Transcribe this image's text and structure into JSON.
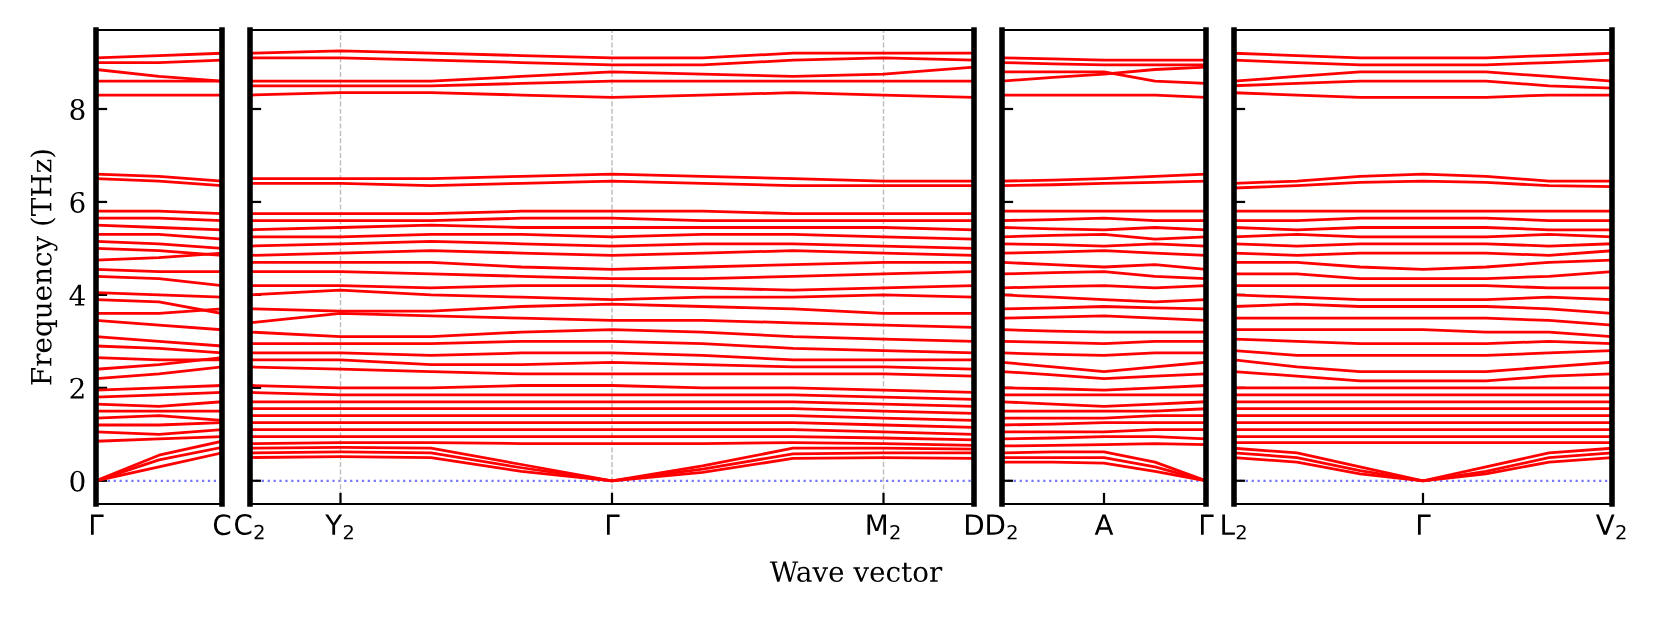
{
  "chart_data": [
    {
      "type": "line",
      "color": "#ff0000",
      "ylabel": "Frequency (THz)",
      "categories": [
        "Γ",
        null,
        "C"
      ],
      "ylim": [
        -0.5,
        9.7
      ],
      "yticks": [
        0,
        2,
        4,
        6,
        8
      ],
      "line_style": "solid",
      "ref_lines": [
        {
          "axis": "y",
          "value": 0,
          "color": "#7777ff",
          "line_style": "dotted"
        }
      ],
      "series": [
        {
          "values": [
            9.1,
            9.15,
            9.2
          ]
        },
        {
          "values": [
            9.0,
            9.0,
            9.05
          ]
        },
        {
          "values": [
            8.85,
            8.7,
            8.6
          ]
        },
        {
          "values": [
            8.6,
            8.6,
            8.6
          ]
        },
        {
          "values": [
            8.3,
            8.3,
            8.3
          ]
        },
        {
          "values": [
            6.6,
            6.55,
            6.45
          ]
        },
        {
          "values": [
            6.5,
            6.45,
            6.35
          ]
        },
        {
          "values": [
            5.8,
            5.8,
            5.75
          ]
        },
        {
          "values": [
            5.65,
            5.65,
            5.6
          ]
        },
        {
          "values": [
            5.5,
            5.45,
            5.4
          ]
        },
        {
          "values": [
            5.3,
            5.3,
            5.2
          ]
        },
        {
          "values": [
            5.15,
            5.1,
            5.0
          ]
        },
        {
          "values": [
            5.0,
            4.95,
            4.85
          ]
        },
        {
          "values": [
            4.75,
            4.8,
            4.9
          ]
        },
        {
          "values": [
            4.55,
            4.5,
            4.5
          ]
        },
        {
          "values": [
            4.4,
            4.35,
            4.2
          ]
        },
        {
          "values": [
            4.05,
            4.0,
            3.95
          ]
        },
        {
          "values": [
            3.9,
            3.85,
            3.6
          ]
        },
        {
          "values": [
            3.6,
            3.6,
            3.7
          ]
        },
        {
          "values": [
            3.45,
            3.35,
            3.25
          ]
        },
        {
          "values": [
            3.1,
            3.0,
            2.9
          ]
        },
        {
          "values": [
            2.9,
            2.85,
            2.75
          ]
        },
        {
          "values": [
            2.65,
            2.6,
            2.6
          ]
        },
        {
          "values": [
            2.4,
            2.5,
            2.65
          ]
        },
        {
          "values": [
            2.2,
            2.3,
            2.45
          ]
        },
        {
          "values": [
            1.95,
            2.0,
            2.05
          ]
        },
        {
          "values": [
            1.8,
            1.85,
            1.9
          ]
        },
        {
          "values": [
            1.65,
            1.6,
            1.7
          ]
        },
        {
          "values": [
            1.5,
            1.5,
            1.5
          ]
        },
        {
          "values": [
            1.35,
            1.4,
            1.3
          ]
        },
        {
          "values": [
            1.2,
            1.2,
            1.25
          ]
        },
        {
          "values": [
            1.05,
            1.0,
            1.1
          ]
        },
        {
          "values": [
            0.85,
            0.9,
            0.95
          ]
        },
        {
          "values": [
            0,
            0.3,
            0.6
          ]
        },
        {
          "values": [
            0,
            0.45,
            0.72
          ]
        },
        {
          "values": [
            0,
            0.55,
            0.85
          ]
        }
      ]
    },
    {
      "type": "line",
      "color": "#ff0000",
      "xlabel": "Wave vector",
      "categories": [
        "C$_{2}$",
        "Y$_{2}$",
        null,
        null,
        "Γ",
        null,
        null,
        "M$_{2}$",
        "D"
      ],
      "ylim": [
        -0.5,
        9.7
      ],
      "yticks": [
        0,
        2,
        4,
        6,
        8
      ],
      "tick_labels": "x",
      "grid": "x",
      "line_style": "solid",
      "ref_lines": [
        {
          "axis": "y",
          "value": 0,
          "color": "#7777ff",
          "line_style": "dotted"
        }
      ],
      "series": [
        {
          "values": [
            9.2,
            9.25,
            9.2,
            9.15,
            9.1,
            9.1,
            9.2,
            9.2,
            9.2
          ]
        },
        {
          "values": [
            9.1,
            9.1,
            9.05,
            9.0,
            8.95,
            8.95,
            9.05,
            9.1,
            9.05
          ]
        },
        {
          "values": [
            8.6,
            8.6,
            8.6,
            8.7,
            8.8,
            8.75,
            8.7,
            8.75,
            8.9
          ]
        },
        {
          "values": [
            8.5,
            8.5,
            8.5,
            8.55,
            8.6,
            8.6,
            8.6,
            8.6,
            8.6
          ]
        },
        {
          "values": [
            8.3,
            8.35,
            8.35,
            8.3,
            8.25,
            8.3,
            8.35,
            8.3,
            8.25
          ]
        },
        {
          "values": [
            6.5,
            6.5,
            6.5,
            6.55,
            6.6,
            6.55,
            6.5,
            6.45,
            6.45
          ]
        },
        {
          "values": [
            6.4,
            6.4,
            6.35,
            6.4,
            6.45,
            6.4,
            6.35,
            6.35,
            6.35
          ]
        },
        {
          "values": [
            5.75,
            5.75,
            5.75,
            5.8,
            5.8,
            5.8,
            5.75,
            5.75,
            5.75
          ]
        },
        {
          "values": [
            5.6,
            5.6,
            5.6,
            5.65,
            5.65,
            5.6,
            5.6,
            5.6,
            5.6
          ]
        },
        {
          "values": [
            5.4,
            5.45,
            5.5,
            5.45,
            5.45,
            5.45,
            5.45,
            5.45,
            5.4
          ]
        },
        {
          "values": [
            5.25,
            5.25,
            5.3,
            5.3,
            5.25,
            5.3,
            5.3,
            5.25,
            5.2
          ]
        },
        {
          "values": [
            5.05,
            5.1,
            5.15,
            5.1,
            5.05,
            5.1,
            5.1,
            5.05,
            5.0
          ]
        },
        {
          "values": [
            4.85,
            4.9,
            4.95,
            4.9,
            4.85,
            4.9,
            4.95,
            4.9,
            4.85
          ]
        },
        {
          "values": [
            4.7,
            4.7,
            4.7,
            4.6,
            4.55,
            4.6,
            4.65,
            4.7,
            4.7
          ]
        },
        {
          "values": [
            4.5,
            4.5,
            4.45,
            4.4,
            4.35,
            4.35,
            4.4,
            4.45,
            4.5
          ]
        },
        {
          "values": [
            4.2,
            4.2,
            4.15,
            4.2,
            4.2,
            4.15,
            4.1,
            4.15,
            4.2
          ]
        },
        {
          "values": [
            4.0,
            4.1,
            4.0,
            3.95,
            3.9,
            3.95,
            3.95,
            4.0,
            3.95
          ]
        },
        {
          "values": [
            3.7,
            3.65,
            3.65,
            3.75,
            3.8,
            3.75,
            3.7,
            3.6,
            3.6
          ]
        },
        {
          "values": [
            3.4,
            3.6,
            3.55,
            3.5,
            3.45,
            3.45,
            3.4,
            3.35,
            3.3
          ]
        },
        {
          "values": [
            3.2,
            3.1,
            3.1,
            3.2,
            3.25,
            3.2,
            3.1,
            3.05,
            3.0
          ]
        },
        {
          "values": [
            2.95,
            2.95,
            2.95,
            3.0,
            3.0,
            2.95,
            2.85,
            2.8,
            2.75
          ]
        },
        {
          "values": [
            2.75,
            2.75,
            2.7,
            2.75,
            2.75,
            2.7,
            2.6,
            2.6,
            2.6
          ]
        },
        {
          "values": [
            2.6,
            2.6,
            2.5,
            2.5,
            2.55,
            2.5,
            2.45,
            2.45,
            2.4
          ]
        },
        {
          "values": [
            2.45,
            2.4,
            2.35,
            2.3,
            2.3,
            2.3,
            2.3,
            2.3,
            2.25
          ]
        },
        {
          "values": [
            2.05,
            2.0,
            2.0,
            2.05,
            2.05,
            2.0,
            2.0,
            1.95,
            1.9
          ]
        },
        {
          "values": [
            1.9,
            1.85,
            1.85,
            1.85,
            1.85,
            1.85,
            1.85,
            1.8,
            1.75
          ]
        },
        {
          "values": [
            1.7,
            1.7,
            1.7,
            1.7,
            1.7,
            1.7,
            1.7,
            1.65,
            1.6
          ]
        },
        {
          "values": [
            1.55,
            1.55,
            1.55,
            1.55,
            1.55,
            1.55,
            1.55,
            1.5,
            1.45
          ]
        },
        {
          "values": [
            1.4,
            1.4,
            1.4,
            1.4,
            1.4,
            1.4,
            1.4,
            1.35,
            1.3
          ]
        },
        {
          "values": [
            1.25,
            1.25,
            1.25,
            1.25,
            1.25,
            1.25,
            1.25,
            1.2,
            1.15
          ]
        },
        {
          "values": [
            1.1,
            1.1,
            1.1,
            1.1,
            1.1,
            1.1,
            1.1,
            1.05,
            1.0
          ]
        },
        {
          "values": [
            0.95,
            0.95,
            0.95,
            0.95,
            0.95,
            0.95,
            0.95,
            0.92,
            0.88
          ]
        },
        {
          "values": [
            0.8,
            0.82,
            0.82,
            0.8,
            0.8,
            0.8,
            0.82,
            0.8,
            0.76
          ]
        },
        {
          "values": [
            0.5,
            0.52,
            0.5,
            0.2,
            0,
            0.18,
            0.48,
            0.5,
            0.48
          ]
        },
        {
          "values": [
            0.6,
            0.62,
            0.6,
            0.28,
            0,
            0.25,
            0.58,
            0.6,
            0.6
          ]
        },
        {
          "values": [
            0.7,
            0.72,
            0.7,
            0.35,
            0,
            0.32,
            0.7,
            0.7,
            0.68
          ]
        }
      ]
    },
    {
      "type": "line",
      "color": "#ff0000",
      "categories": [
        "D$_{2}$",
        null,
        "A",
        null,
        "Γ"
      ],
      "ylim": [
        -0.5,
        9.7
      ],
      "yticks": [
        0,
        2,
        4,
        6,
        8
      ],
      "tick_labels": "x",
      "line_style": "solid",
      "ref_lines": [
        {
          "axis": "y",
          "value": 0,
          "color": "#7777ff",
          "line_style": "dotted"
        }
      ],
      "series": [
        {
          "values": [
            9.1,
            9.08,
            9.05,
            9.05,
            9.05
          ]
        },
        {
          "values": [
            9.0,
            8.97,
            8.95,
            8.95,
            8.95
          ]
        },
        {
          "values": [
            8.8,
            8.8,
            8.8,
            8.6,
            8.55
          ]
        },
        {
          "values": [
            8.6,
            8.68,
            8.75,
            8.85,
            8.9
          ]
        },
        {
          "values": [
            8.3,
            8.3,
            8.3,
            8.3,
            8.25
          ]
        },
        {
          "values": [
            6.45,
            6.47,
            6.5,
            6.55,
            6.6
          ]
        },
        {
          "values": [
            6.35,
            6.37,
            6.4,
            6.42,
            6.45
          ]
        },
        {
          "values": [
            5.8,
            5.8,
            5.8,
            5.8,
            5.8
          ]
        },
        {
          "values": [
            5.6,
            5.62,
            5.65,
            5.6,
            5.6
          ]
        },
        {
          "values": [
            5.45,
            5.42,
            5.4,
            5.45,
            5.4
          ]
        },
        {
          "values": [
            5.25,
            5.28,
            5.3,
            5.2,
            5.25
          ]
        },
        {
          "values": [
            5.1,
            5.08,
            5.05,
            5.1,
            5.05
          ]
        },
        {
          "values": [
            4.9,
            4.92,
            4.95,
            4.9,
            4.85
          ]
        },
        {
          "values": [
            4.7,
            4.65,
            4.6,
            4.65,
            4.55
          ]
        },
        {
          "values": [
            4.45,
            4.48,
            4.5,
            4.4,
            4.35
          ]
        },
        {
          "values": [
            4.15,
            4.18,
            4.2,
            4.15,
            4.2
          ]
        },
        {
          "values": [
            4.0,
            3.95,
            3.9,
            3.85,
            3.9
          ]
        },
        {
          "values": [
            3.7,
            3.72,
            3.75,
            3.72,
            3.7
          ]
        },
        {
          "values": [
            3.5,
            3.52,
            3.55,
            3.5,
            3.45
          ]
        },
        {
          "values": [
            3.25,
            3.22,
            3.2,
            3.2,
            3.2
          ]
        },
        {
          "values": [
            3.0,
            2.98,
            2.95,
            3.0,
            3.0
          ]
        },
        {
          "values": [
            2.75,
            2.72,
            2.7,
            2.75,
            2.75
          ]
        },
        {
          "values": [
            2.55,
            2.45,
            2.35,
            2.45,
            2.55
          ]
        },
        {
          "values": [
            2.35,
            2.28,
            2.2,
            2.25,
            2.3
          ]
        },
        {
          "values": [
            2.0,
            1.98,
            1.95,
            2.0,
            2.05
          ]
        },
        {
          "values": [
            1.85,
            1.85,
            1.85,
            1.85,
            1.85
          ]
        },
        {
          "values": [
            1.7,
            1.65,
            1.6,
            1.65,
            1.7
          ]
        },
        {
          "values": [
            1.5,
            1.5,
            1.5,
            1.5,
            1.55
          ]
        },
        {
          "values": [
            1.35,
            1.35,
            1.35,
            1.4,
            1.4
          ]
        },
        {
          "values": [
            1.2,
            1.22,
            1.25,
            1.25,
            1.25
          ]
        },
        {
          "values": [
            1.05,
            1.05,
            1.05,
            1.1,
            1.1
          ]
        },
        {
          "values": [
            0.9,
            0.92,
            0.95,
            0.95,
            0.9
          ]
        },
        {
          "values": [
            0.75,
            0.76,
            0.78,
            0.8,
            0.78
          ]
        },
        {
          "values": [
            0.4,
            0.4,
            0.38,
            0.2,
            0
          ]
        },
        {
          "values": [
            0.5,
            0.5,
            0.5,
            0.3,
            0
          ]
        },
        {
          "values": [
            0.6,
            0.62,
            0.62,
            0.4,
            0
          ]
        }
      ]
    },
    {
      "type": "line",
      "color": "#ff0000",
      "categories": [
        "L$_{2}$",
        null,
        null,
        "Γ",
        null,
        null,
        "V$_{2}$"
      ],
      "ylim": [
        -0.5,
        9.7
      ],
      "yticks": [
        0,
        2,
        4,
        6,
        8
      ],
      "tick_labels": "x",
      "line_style": "solid",
      "ref_lines": [
        {
          "axis": "y",
          "value": 0,
          "color": "#7777ff",
          "line_style": "dotted"
        }
      ],
      "series": [
        {
          "values": [
            9.2,
            9.15,
            9.1,
            9.1,
            9.1,
            9.15,
            9.2
          ]
        },
        {
          "values": [
            9.05,
            9.0,
            8.95,
            8.95,
            8.95,
            9.0,
            9.05
          ]
        },
        {
          "values": [
            8.6,
            8.7,
            8.8,
            8.8,
            8.8,
            8.7,
            8.6
          ]
        },
        {
          "values": [
            8.5,
            8.55,
            8.6,
            8.6,
            8.6,
            8.5,
            8.45
          ]
        },
        {
          "values": [
            8.35,
            8.3,
            8.25,
            8.25,
            8.25,
            8.3,
            8.3
          ]
        },
        {
          "values": [
            6.4,
            6.45,
            6.55,
            6.6,
            6.55,
            6.45,
            6.45
          ]
        },
        {
          "values": [
            6.3,
            6.35,
            6.42,
            6.45,
            6.42,
            6.35,
            6.33
          ]
        },
        {
          "values": [
            5.8,
            5.8,
            5.8,
            5.8,
            5.8,
            5.8,
            5.8
          ]
        },
        {
          "values": [
            5.6,
            5.6,
            5.65,
            5.65,
            5.65,
            5.6,
            5.6
          ]
        },
        {
          "values": [
            5.45,
            5.4,
            5.45,
            5.45,
            5.45,
            5.4,
            5.4
          ]
        },
        {
          "values": [
            5.25,
            5.3,
            5.25,
            5.25,
            5.25,
            5.3,
            5.25
          ]
        },
        {
          "values": [
            5.1,
            5.05,
            5.1,
            5.1,
            5.1,
            5.05,
            5.1
          ]
        },
        {
          "values": [
            4.9,
            4.85,
            4.9,
            4.9,
            4.9,
            4.85,
            4.95
          ]
        },
        {
          "values": [
            4.7,
            4.7,
            4.6,
            4.55,
            4.6,
            4.7,
            4.75
          ]
        },
        {
          "values": [
            4.45,
            4.45,
            4.35,
            4.35,
            4.35,
            4.4,
            4.5
          ]
        },
        {
          "values": [
            4.2,
            4.2,
            4.2,
            4.2,
            4.2,
            4.15,
            4.15
          ]
        },
        {
          "values": [
            4.0,
            3.95,
            3.9,
            3.9,
            3.9,
            3.95,
            3.9
          ]
        },
        {
          "values": [
            3.75,
            3.8,
            3.75,
            3.75,
            3.75,
            3.7,
            3.6
          ]
        },
        {
          "values": [
            3.5,
            3.5,
            3.5,
            3.5,
            3.5,
            3.45,
            3.35
          ]
        },
        {
          "values": [
            3.25,
            3.25,
            3.25,
            3.25,
            3.2,
            3.2,
            3.1
          ]
        },
        {
          "values": [
            3.05,
            3.0,
            2.95,
            2.95,
            2.95,
            3.0,
            2.95
          ]
        },
        {
          "values": [
            2.8,
            2.7,
            2.7,
            2.7,
            2.7,
            2.75,
            2.8
          ]
        },
        {
          "values": [
            2.6,
            2.45,
            2.35,
            2.35,
            2.35,
            2.45,
            2.55
          ]
        },
        {
          "values": [
            2.35,
            2.25,
            2.15,
            2.15,
            2.15,
            2.25,
            2.3
          ]
        },
        {
          "values": [
            2.0,
            2.0,
            2.0,
            2.0,
            2.0,
            2.0,
            2.0
          ]
        },
        {
          "values": [
            1.85,
            1.85,
            1.85,
            1.85,
            1.85,
            1.85,
            1.85
          ]
        },
        {
          "values": [
            1.7,
            1.7,
            1.7,
            1.7,
            1.7,
            1.7,
            1.7
          ]
        },
        {
          "values": [
            1.55,
            1.55,
            1.55,
            1.55,
            1.55,
            1.55,
            1.55
          ]
        },
        {
          "values": [
            1.4,
            1.4,
            1.4,
            1.4,
            1.4,
            1.4,
            1.4
          ]
        },
        {
          "values": [
            1.25,
            1.25,
            1.25,
            1.25,
            1.25,
            1.25,
            1.25
          ]
        },
        {
          "values": [
            1.1,
            1.1,
            1.1,
            1.1,
            1.1,
            1.1,
            1.1
          ]
        },
        {
          "values": [
            0.95,
            0.95,
            0.95,
            0.95,
            0.95,
            0.95,
            0.95
          ]
        },
        {
          "values": [
            0.82,
            0.82,
            0.82,
            0.82,
            0.82,
            0.82,
            0.82
          ]
        },
        {
          "values": [
            0.5,
            0.4,
            0.15,
            0,
            0.15,
            0.4,
            0.5
          ]
        },
        {
          "values": [
            0.6,
            0.5,
            0.22,
            0,
            0.2,
            0.5,
            0.6
          ]
        },
        {
          "values": [
            0.7,
            0.6,
            0.3,
            0,
            0.3,
            0.6,
            0.7
          ]
        }
      ]
    }
  ]
}
